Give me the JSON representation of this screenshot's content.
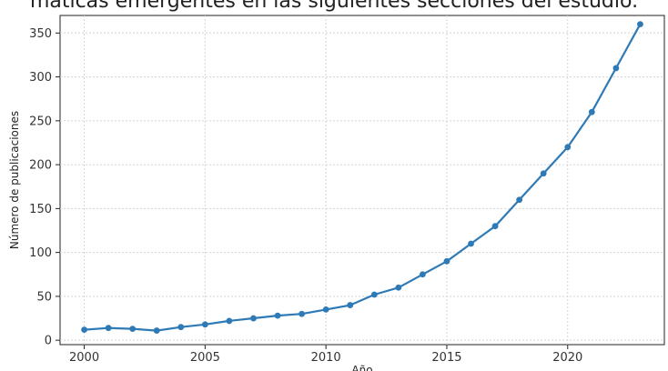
{
  "header": {
    "caption": "máticas emergentes en las siguientes secciones del estudio."
  },
  "chart_data": {
    "type": "line",
    "xlabel": "Año",
    "ylabel": "Número de publicaciones",
    "xlim": [
      1999,
      2024
    ],
    "ylim": [
      -5,
      370
    ],
    "xticks": [
      2000,
      2005,
      2010,
      2015,
      2020
    ],
    "yticks": [
      0,
      50,
      100,
      150,
      200,
      250,
      300,
      350
    ],
    "grid": true,
    "series": [
      {
        "color": "#2e7ab6",
        "x": [
          2000,
          2001,
          2002,
          2003,
          2004,
          2005,
          2006,
          2007,
          2008,
          2009,
          2010,
          2011,
          2012,
          2013,
          2014,
          2015,
          2016,
          2017,
          2018,
          2019,
          2020,
          2021,
          2022,
          2023
        ],
        "values": [
          12,
          14,
          13,
          11,
          15,
          18,
          22,
          25,
          28,
          30,
          35,
          40,
          52,
          60,
          75,
          90,
          110,
          130,
          160,
          190,
          220,
          260,
          310,
          360
        ]
      }
    ]
  }
}
